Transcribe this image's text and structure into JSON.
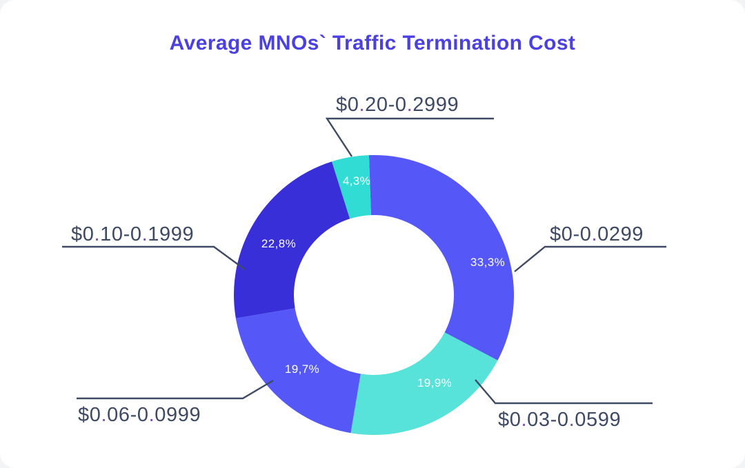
{
  "title": "Average MNOs` Traffic Termination Cost",
  "colors": {
    "title": "#4B40E2",
    "label_text": "#3E4A63",
    "label_dot": "#7E4FA8",
    "leader_line": "#3E4A63",
    "background": "#FFFFFF"
  },
  "chart_data": {
    "type": "pie",
    "subtype": "donut",
    "title": "Average MNOs` Traffic Termination Cost",
    "direction": "clockwise",
    "start_angle_deg": -2,
    "categories": [
      "$0-0.0299",
      "$0.03-0.0599",
      "$0.06-0.0999",
      "$0.10-0.1999",
      "$0.20-0.2999"
    ],
    "values": [
      33.3,
      19.9,
      19.7,
      22.8,
      4.3
    ],
    "value_labels": [
      "33,3%",
      "19,9%",
      "19,7%",
      "22,8%",
      "4,3%"
    ],
    "slice_colors": [
      "#5558F6",
      "#57E2DA",
      "#5558F6",
      "#392FD9",
      "#30DCD4"
    ],
    "legend_position": "callout-labels",
    "units": "percent"
  }
}
